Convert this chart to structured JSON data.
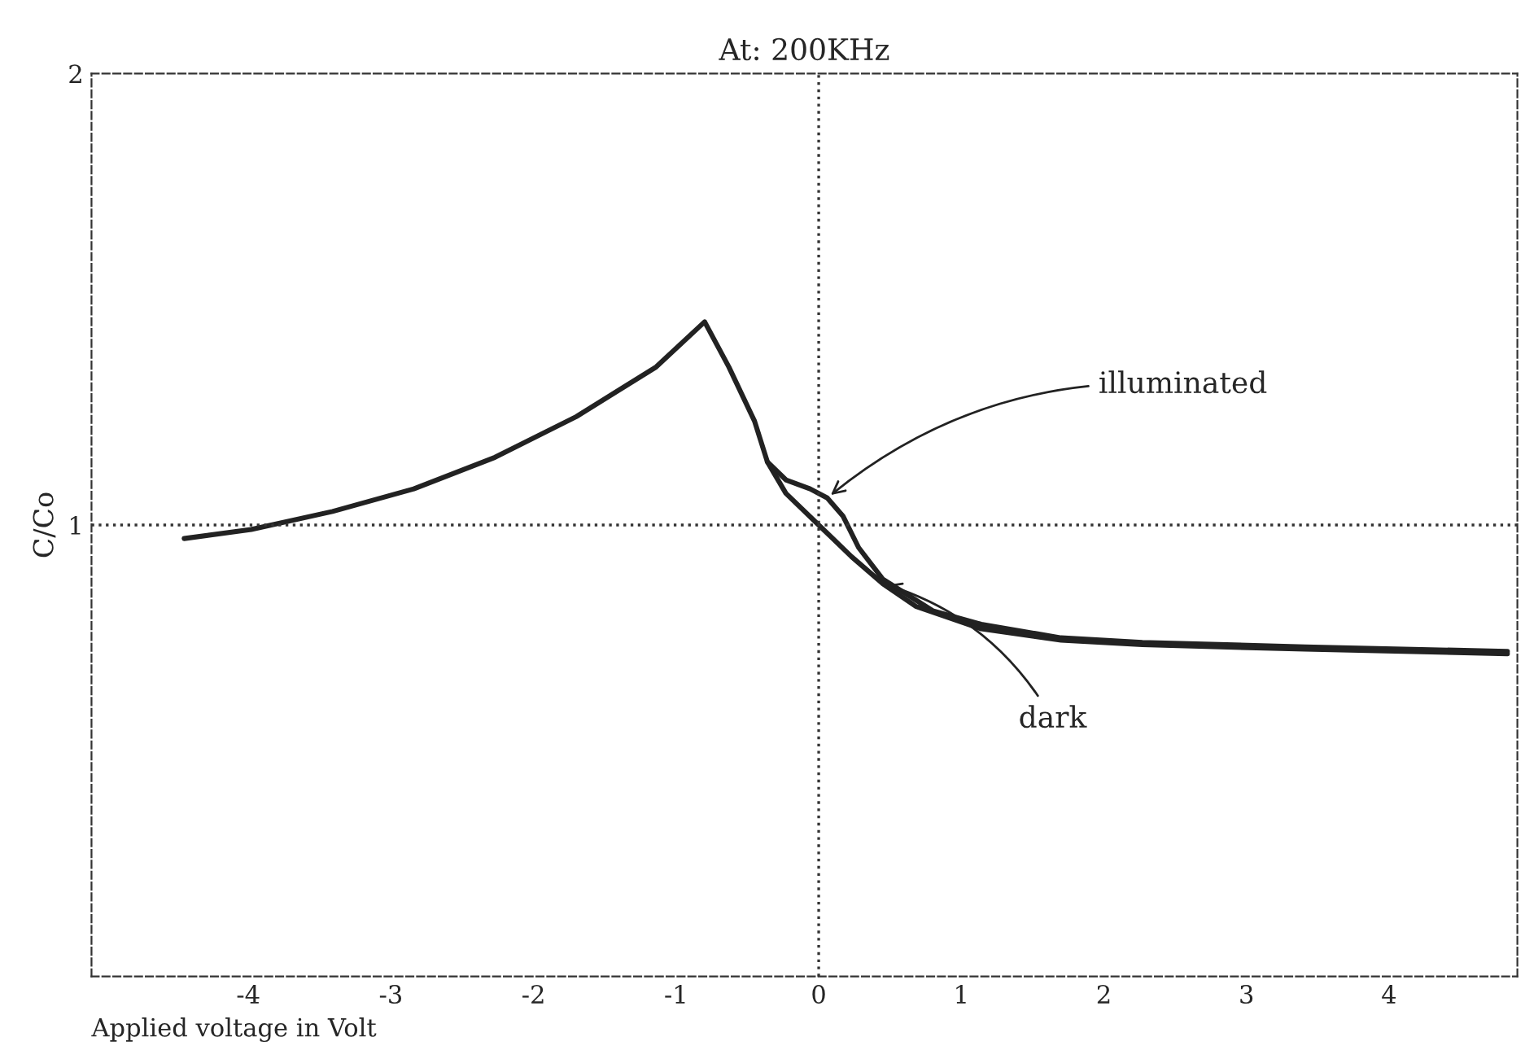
{
  "chart_data": {
    "type": "line",
    "title": "At: 200KHz",
    "xlabel": "Applied voltage in Volt",
    "ylabel": "C/Co",
    "series": [
      {
        "color": "#222222",
        "x": [
          -4.45,
          -3.98,
          -3.41,
          -2.84,
          -2.27,
          -1.7,
          -1.14,
          -0.8,
          -0.63,
          -0.45,
          -0.36,
          -0.23,
          -0.06,
          0.06,
          0.17,
          0.28,
          0.45,
          0.8,
          1.14,
          1.7,
          2.27,
          3.41,
          4.83
        ],
        "values": [
          0.97,
          0.99,
          1.03,
          1.08,
          1.15,
          1.24,
          1.35,
          1.45,
          1.35,
          1.23,
          1.14,
          1.1,
          1.08,
          1.06,
          1.02,
          0.95,
          0.88,
          0.81,
          0.78,
          0.75,
          0.74,
          0.73,
          0.72
        ]
      },
      {
        "color": "#222222",
        "x": [
          -0.36,
          -0.23,
          0.0,
          0.23,
          0.45,
          0.68,
          1.14,
          1.7,
          2.27,
          3.41,
          4.83
        ],
        "values": [
          1.14,
          1.07,
          1.0,
          0.93,
          0.87,
          0.82,
          0.77,
          0.745,
          0.735,
          0.725,
          0.715
        ]
      }
    ],
    "annotations": [
      {
        "text": "illuminated",
        "x": 0.06,
        "y": 1.06
      },
      {
        "text": "dark",
        "x": 0.45,
        "y": 0.87
      }
    ],
    "ref_lines": [
      {
        "axis": "x",
        "value": 0,
        "color": "#333333",
        "line_style": "dotted"
      },
      {
        "axis": "y",
        "value": 1,
        "color": "#333333",
        "line_style": "dotted"
      }
    ],
    "xlim": [
      -5.1,
      4.9
    ],
    "xticks": [
      -4,
      -3,
      -2,
      -1,
      0,
      1,
      2,
      3,
      4
    ],
    "ylim": [
      0,
      2
    ],
    "yticks": [
      1,
      2
    ],
    "grid": false,
    "legend": false,
    "marker": "none",
    "line_style": "solid"
  }
}
